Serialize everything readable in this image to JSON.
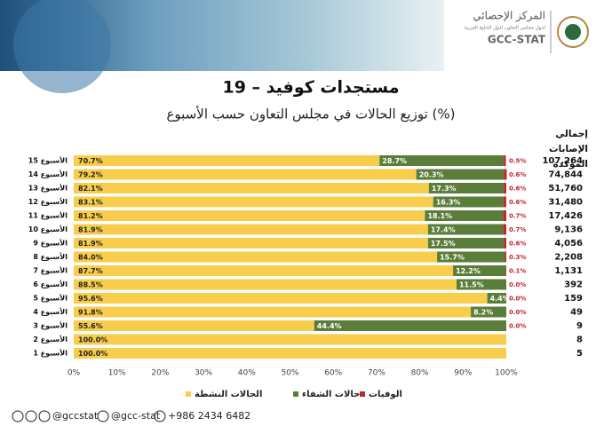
{
  "header": {
    "logo_ar": "المركز الإحصائي",
    "logo_sub": "لدول مجلس التعاون لدول الخليج العربية",
    "logo_en": "GCC-STAT"
  },
  "chart_data": {
    "type": "stacked_barh",
    "title": "مستجدات كوفيد – 19",
    "subtitle": "توزيع الحالات في مجلس التعاون حسب الأسبوع (%)",
    "categories": [
      "الأسبوع 15",
      "الأسبوع 14",
      "الأسبوع 13",
      "الأسبوع 12",
      "الأسبوع 11",
      "الأسبوع 10",
      "الأسبوع 9",
      "الأسبوع 8",
      "الأسبوع 7",
      "الأسبوع 6",
      "الأسبوع 5",
      "الأسبوع 4",
      "الأسبوع 3",
      "الأسبوع 2",
      "الأسبوع 1"
    ],
    "series": [
      {
        "name": "الحالات النشطة",
        "color": "#f8cd4c",
        "values": [
          70.7,
          79.2,
          82.1,
          83.1,
          81.2,
          81.9,
          81.9,
          84.0,
          87.7,
          88.5,
          95.6,
          91.8,
          55.6,
          100,
          100
        ],
        "value_labels": [
          "70.7%",
          "79.2%",
          "82.1%",
          "83.1%",
          "81.2%",
          "81.9%",
          "81.9%",
          "84.0%",
          "87.7%",
          "88.5%",
          "95.6%",
          "91.8%",
          "55.6%",
          "100.0%",
          "100.0%"
        ]
      },
      {
        "name": "حالات الشفاء",
        "color": "#5a7e3a",
        "values": [
          28.7,
          20.3,
          17.3,
          16.3,
          18.1,
          17.4,
          17.5,
          15.7,
          12.2,
          11.5,
          4.4,
          8.2,
          44.4,
          0,
          0
        ],
        "value_labels": [
          "28.7%",
          "20.3%",
          "17.3%",
          "16.3%",
          "18.1%",
          "17.4%",
          "17.5%",
          "15.7%",
          "12.2%",
          "11.5%",
          "4.4%",
          "8.2%",
          "44.4%",
          null,
          null
        ]
      },
      {
        "name": "الوفيات",
        "color": "#c1272d",
        "values": [
          0.5,
          0.6,
          0.6,
          0.6,
          0.7,
          0.7,
          0.6,
          0.3,
          0.1,
          0.0,
          0.0,
          0.0,
          0.0,
          0,
          0
        ],
        "value_labels": [
          "0.5%",
          "0.6%",
          "0.6%",
          "0.6%",
          "0.7%",
          "0.7%",
          "0.6%",
          "0.3%",
          "0.1%",
          "0.0%",
          "0.0%",
          "0.0%",
          "0.0%",
          null,
          null
        ]
      }
    ],
    "totals": {
      "title": "إجمالي الإصابات المؤكدة",
      "values": [
        107264,
        74844,
        51760,
        31480,
        17426,
        9136,
        4056,
        2208,
        1131,
        392,
        159,
        49,
        9,
        8,
        5
      ],
      "value_labels": [
        "107,264",
        "74,844",
        "51,760",
        "31,480",
        "17,426",
        "9,136",
        "4,056",
        "2,208",
        "1,131",
        "392",
        "159",
        "49",
        "9",
        "8",
        "5"
      ]
    },
    "xlim": [
      0,
      100
    ],
    "xticks": [
      {
        "value": 0,
        "label": "0%"
      },
      {
        "value": 10,
        "label": "10%"
      },
      {
        "value": 20,
        "label": "20%"
      },
      {
        "value": 30,
        "label": "30%"
      },
      {
        "value": 40,
        "label": "40%"
      },
      {
        "value": 50,
        "label": "50%"
      },
      {
        "value": 60,
        "label": "60%"
      },
      {
        "value": 70,
        "label": "70%"
      },
      {
        "value": 80,
        "label": "80%"
      },
      {
        "value": 90,
        "label": "90%"
      },
      {
        "value": 100,
        "label": "100%"
      }
    ],
    "legend": "bottom"
  },
  "footer": {
    "handle1": "@gccstat",
    "handle2": "@gcc-stat",
    "phone": "+986 2434 6482"
  }
}
